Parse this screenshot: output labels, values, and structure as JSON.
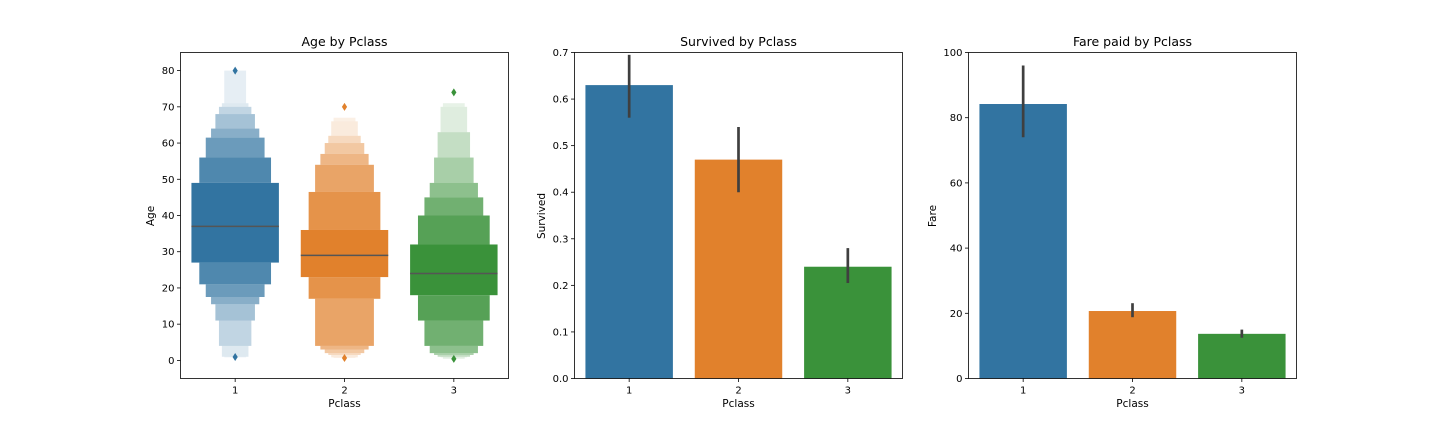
{
  "colors": {
    "class1": "#3274a1",
    "class2": "#e1812c",
    "class3": "#3a923a",
    "errorbar": "#3f3f3f",
    "median": "#555555"
  },
  "chart_data": [
    {
      "type": "boxen",
      "title": "Age by Pclass",
      "xlabel": "Pclass",
      "ylabel": "Age",
      "categories": [
        "1",
        "2",
        "3"
      ],
      "ylim": [
        -5,
        85
      ],
      "yticks": [
        0,
        10,
        20,
        30,
        40,
        50,
        60,
        70,
        80
      ],
      "series": [
        {
          "category": "1",
          "median": 37,
          "letter_values": [
            [
              27,
              49
            ],
            [
              21,
              56
            ],
            [
              17.5,
              61.5
            ],
            [
              15.5,
              64
            ],
            [
              11,
              68
            ],
            [
              4,
              70
            ],
            [
              1,
              71
            ],
            [
              0.92,
              80
            ]
          ],
          "outliers": [
            80,
            0.92
          ]
        },
        {
          "category": "2",
          "median": 29,
          "letter_values": [
            [
              23,
              36
            ],
            [
              17,
              46.5
            ],
            [
              4,
              54
            ],
            [
              3,
              57
            ],
            [
              2,
              60
            ],
            [
              1.5,
              62
            ],
            [
              0.83,
              66
            ],
            [
              0.67,
              67
            ]
          ],
          "outliers": [
            70,
            0.67
          ]
        },
        {
          "category": "3",
          "median": 24,
          "letter_values": [
            [
              18,
              32
            ],
            [
              11,
              40
            ],
            [
              4,
              45
            ],
            [
              2,
              49
            ],
            [
              1.5,
              56
            ],
            [
              1,
              63
            ],
            [
              0.9,
              70
            ],
            [
              0.42,
              71
            ]
          ],
          "outliers": [
            74,
            0.42
          ]
        }
      ]
    },
    {
      "type": "bar",
      "title": "Survived by Pclass",
      "xlabel": "Pclass",
      "ylabel": "Survived",
      "categories": [
        "1",
        "2",
        "3"
      ],
      "values": [
        0.63,
        0.47,
        0.24
      ],
      "ci": [
        [
          0.56,
          0.695
        ],
        [
          0.4,
          0.54
        ],
        [
          0.205,
          0.28
        ]
      ],
      "ylim": [
        0,
        0.7
      ],
      "yticks": [
        0.0,
        0.1,
        0.2,
        0.3,
        0.4,
        0.5,
        0.6,
        0.7
      ]
    },
    {
      "type": "bar",
      "title": "Fare paid by Pclass",
      "xlabel": "Pclass",
      "ylabel": "Fare",
      "categories": [
        "1",
        "2",
        "3"
      ],
      "values": [
        84.2,
        20.7,
        13.7
      ],
      "ci": [
        [
          74,
          96
        ],
        [
          18.8,
          23.1
        ],
        [
          12.5,
          15
        ]
      ],
      "ylim": [
        0,
        100
      ],
      "yticks": [
        0,
        20,
        40,
        60,
        80,
        100
      ]
    }
  ]
}
